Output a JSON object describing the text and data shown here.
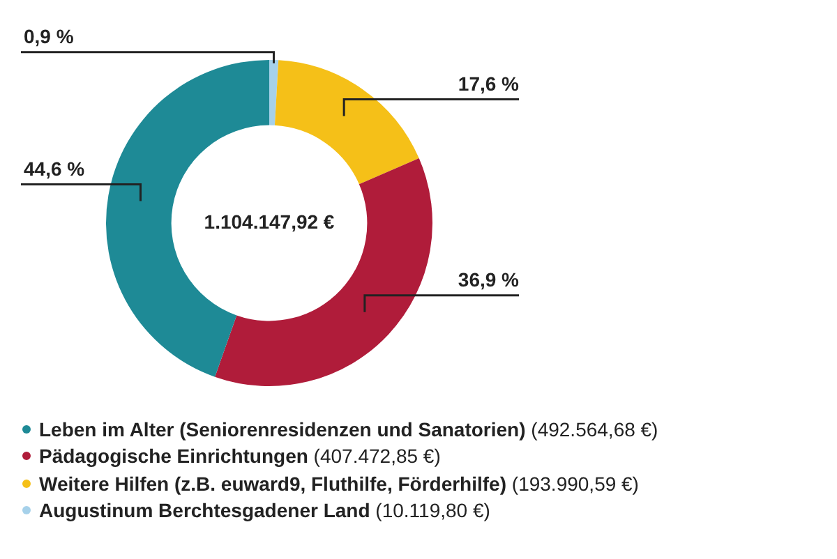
{
  "chart_data": {
    "type": "donut",
    "categories": [
      "Leben im Alter (Seniorenresidenzen und Sanatorien) (492.564,68 €)",
      "Pädagogische Einrichtungen (407.472,85 €)",
      "Weitere Hilfen (z.B. euward9, Fluthilfe, Förderhilfe) (193.990,59 €)",
      "Augustinum Berchtesgadener Land (10.119,80 €)"
    ],
    "values": [
      44.6,
      36.9,
      17.6,
      0.9
    ],
    "value_labels": [
      "44,6 %",
      "36,9 %",
      "17,6 %",
      "0,9 %"
    ],
    "colors": [
      "#1e8a96",
      "#b01c3a",
      "#f5c018",
      "#a6d1ea"
    ],
    "annotations": [
      "1.104.147,92 €"
    ],
    "legend": "bottom"
  }
}
